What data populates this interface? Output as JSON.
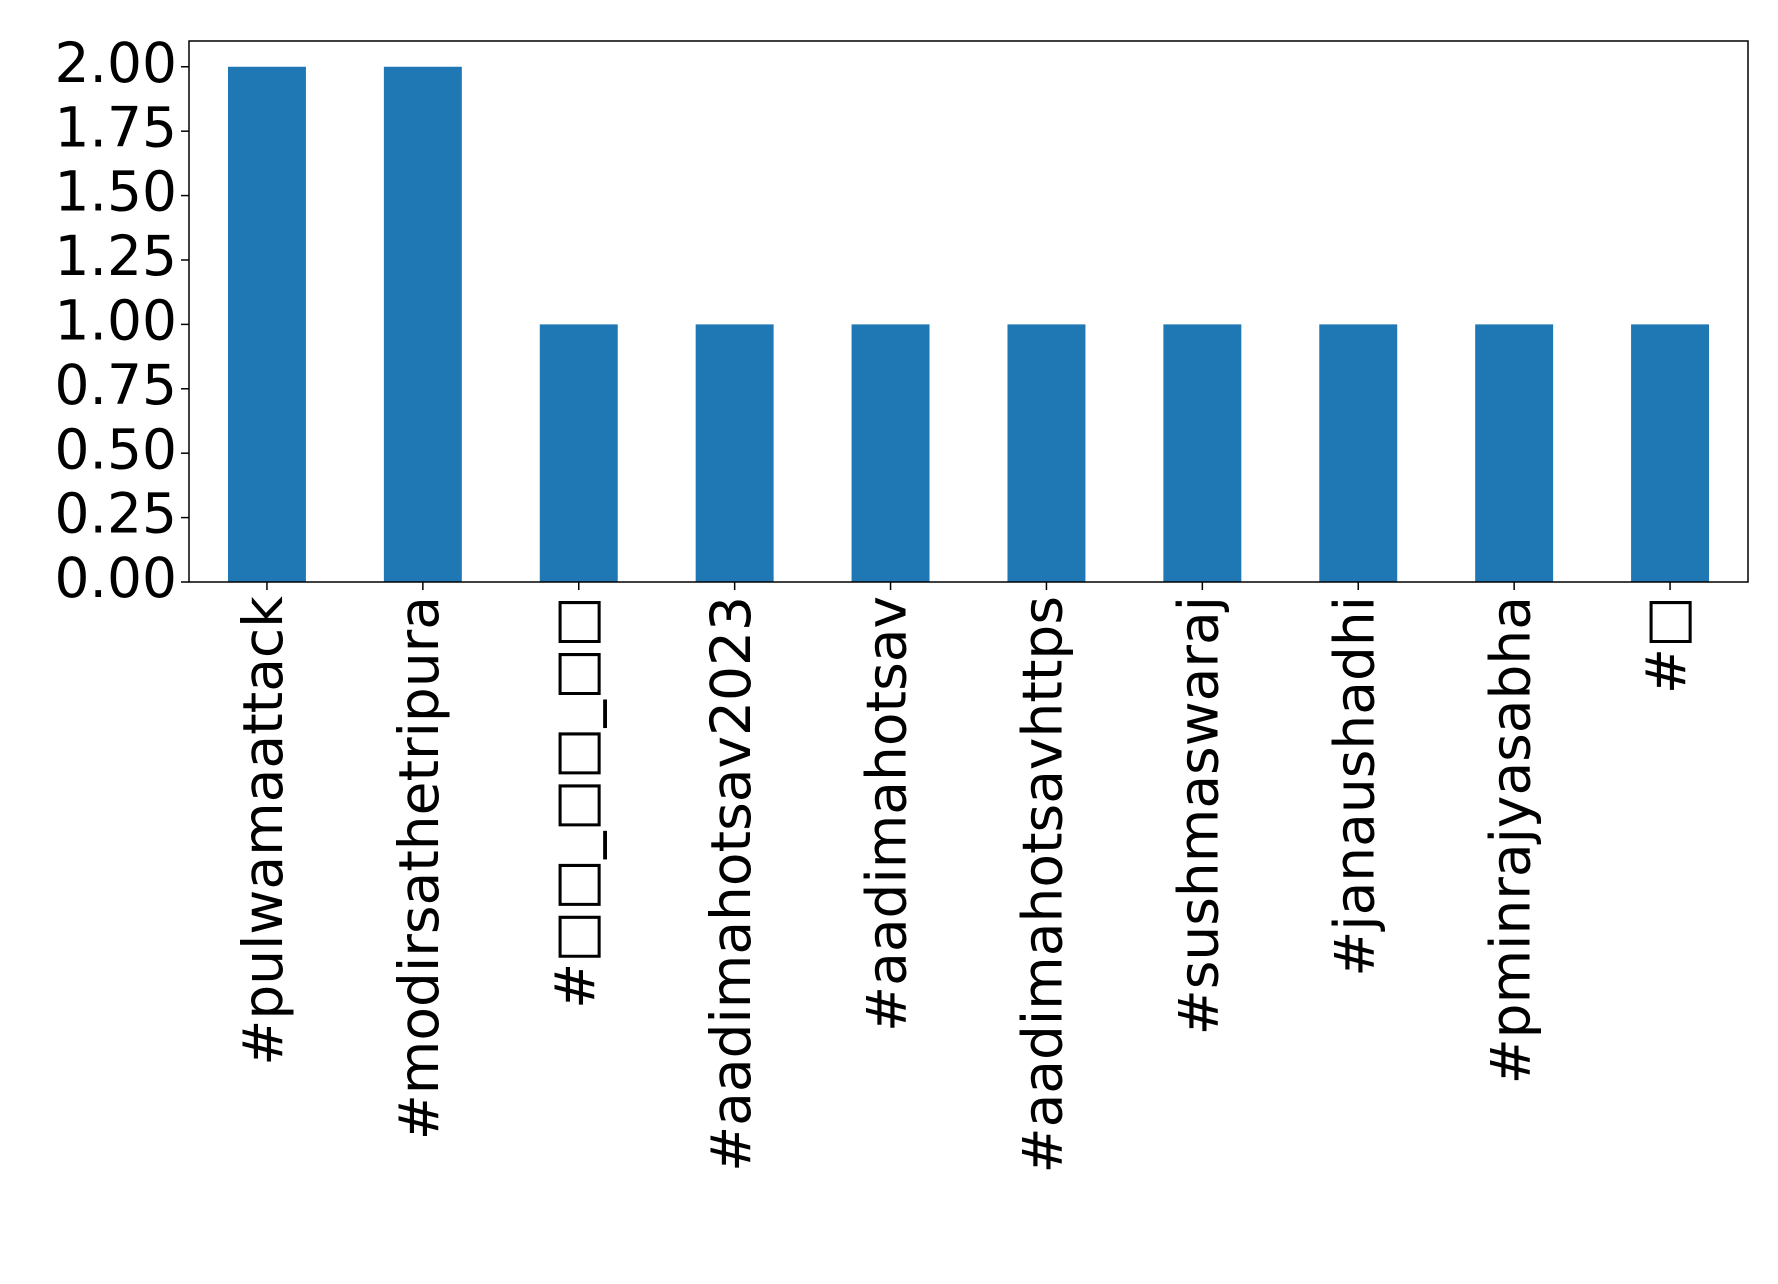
{
  "chart_data": {
    "type": "bar",
    "categories": [
      "#pulwamaattack",
      "#modirsathetripura",
      "#□□_□□_□□",
      "#aadimahotsav2023",
      "#aadimahotsav",
      "#aadimahotsavhttps",
      "#sushmaswaraj",
      "#janaushadhi",
      "#pminrajyasabha",
      "#□"
    ],
    "values": [
      2,
      2,
      1,
      1,
      1,
      1,
      1,
      1,
      1,
      1
    ],
    "color": "#1f77b4",
    "ylim": [
      0,
      2.1
    ],
    "yticks": [
      {
        "value": 0,
        "label": "0.00"
      },
      {
        "value": 0.25,
        "label": "0.25"
      },
      {
        "value": 0.5,
        "label": "0.50"
      },
      {
        "value": 0.75,
        "label": "0.75"
      },
      {
        "value": 1,
        "label": "1.00"
      },
      {
        "value": 1.25,
        "label": "1.25"
      },
      {
        "value": 1.5,
        "label": "1.50"
      },
      {
        "value": 1.75,
        "label": "1.75"
      },
      {
        "value": 2,
        "label": "2.00"
      }
    ],
    "grid": false
  }
}
